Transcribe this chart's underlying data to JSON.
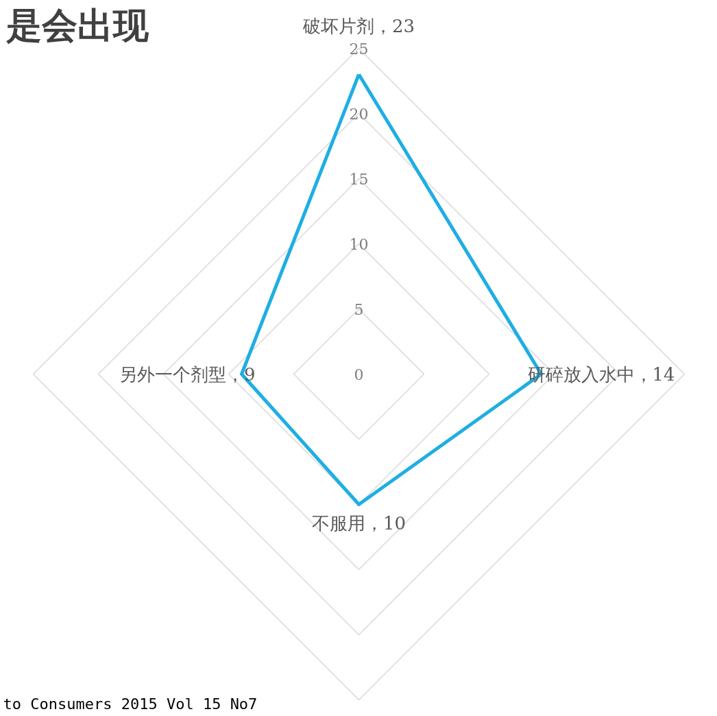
{
  "chart_data": {
    "type": "radar",
    "title": "是会出现",
    "categories": [
      "破坏片剂，23",
      "研碎放入水中，14",
      "不服用，10",
      "另外一个剂型，9"
    ],
    "series": [
      {
        "color": "#1eaee3",
        "values": [
          23,
          14,
          10,
          9
        ]
      }
    ],
    "ylim": [
      0,
      25
    ],
    "yticks": [
      0,
      5,
      10,
      15,
      20,
      25
    ],
    "grid": true,
    "line_style": "solid",
    "annotations": [
      "to Consumers 2015 Vol 15 No7"
    ]
  }
}
